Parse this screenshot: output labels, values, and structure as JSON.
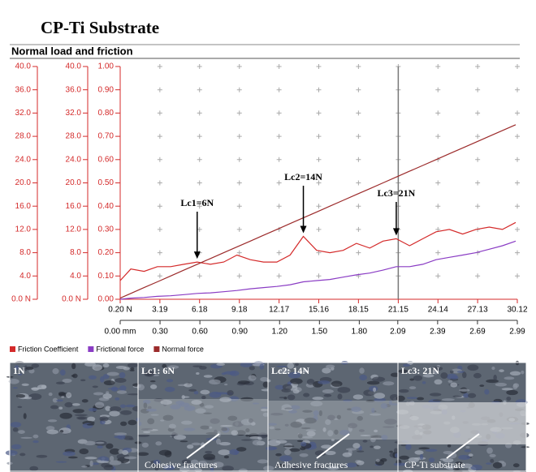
{
  "chart_data": {
    "type": "line",
    "title": "CP-Ti Substrate",
    "subtitle": "Normal load and friction",
    "x": [
      0.2,
      1,
      2,
      3,
      4,
      5,
      6,
      7,
      8,
      9,
      10,
      11,
      12,
      13,
      14,
      15,
      16,
      17,
      18,
      19,
      20,
      21,
      22,
      23,
      24,
      25,
      26,
      27,
      28,
      29,
      30
    ],
    "xlim": [
      0.2,
      30.12
    ],
    "xticks": [
      {
        "value": 0.2,
        "label": "0.20 N"
      },
      {
        "value": 3.19,
        "label": "3.19"
      },
      {
        "value": 6.18,
        "label": "6.18"
      },
      {
        "value": 9.18,
        "label": "9.18"
      },
      {
        "value": 12.17,
        "label": "12.17"
      },
      {
        "value": 15.16,
        "label": "15.16"
      },
      {
        "value": 18.15,
        "label": "18.15"
      },
      {
        "value": 21.15,
        "label": "21.15"
      },
      {
        "value": 24.14,
        "label": "24.14"
      },
      {
        "value": 27.13,
        "label": "27.13"
      },
      {
        "value": 30.12,
        "label": "30.12"
      }
    ],
    "x2lim": [
      0,
      2.99
    ],
    "x2ticks": [
      {
        "value": 0,
        "label": "0.00 mm"
      },
      {
        "value": 0.3,
        "label": "0.30"
      },
      {
        "value": 0.6,
        "label": "0.60"
      },
      {
        "value": 0.9,
        "label": "0.90"
      },
      {
        "value": 1.2,
        "label": "1.20"
      },
      {
        "value": 1.5,
        "label": "1.50"
      },
      {
        "value": 1.8,
        "label": "1.80"
      },
      {
        "value": 2.09,
        "label": "2.09"
      },
      {
        "value": 2.39,
        "label": "2.39"
      },
      {
        "value": 2.69,
        "label": "2.69"
      },
      {
        "value": 2.99,
        "label": "2.99"
      }
    ],
    "ylim": [
      0,
      40
    ],
    "yticks": [
      {
        "value": 0,
        "label": "0.0 N"
      },
      {
        "value": 4,
        "label": "4.0"
      },
      {
        "value": 8,
        "label": "8.0"
      },
      {
        "value": 12,
        "label": "12.0"
      },
      {
        "value": 16,
        "label": "16.0"
      },
      {
        "value": 20,
        "label": "20.0"
      },
      {
        "value": 24,
        "label": "24.0"
      },
      {
        "value": 28,
        "label": "28.0"
      },
      {
        "value": 32,
        "label": "32.0"
      },
      {
        "value": 36,
        "label": "36.0"
      },
      {
        "value": 40,
        "label": "40.0"
      }
    ],
    "y2lim": [
      0,
      40
    ],
    "y2ticks": [
      {
        "value": 0,
        "label": "0.0 N"
      },
      {
        "value": 4,
        "label": "4.0"
      },
      {
        "value": 8,
        "label": "8.0"
      },
      {
        "value": 12,
        "label": "12.0"
      },
      {
        "value": 16,
        "label": "16.0"
      },
      {
        "value": 20,
        "label": "20.0"
      },
      {
        "value": 24,
        "label": "24.0"
      },
      {
        "value": 28,
        "label": "28.0"
      },
      {
        "value": 32,
        "label": "32.0"
      },
      {
        "value": 36,
        "label": "36.0"
      },
      {
        "value": 40,
        "label": "40.0"
      }
    ],
    "y3lim": [
      0,
      1
    ],
    "y3ticks": [
      {
        "value": 0,
        "label": "0.00"
      },
      {
        "value": 0.1,
        "label": "0.10"
      },
      {
        "value": 0.2,
        "label": "0.20"
      },
      {
        "value": 0.3,
        "label": "0.30"
      },
      {
        "value": 0.4,
        "label": "0.40"
      },
      {
        "value": 0.5,
        "label": "0.50"
      },
      {
        "value": 0.6,
        "label": "0.60"
      },
      {
        "value": 0.7,
        "label": "0.70"
      },
      {
        "value": 0.8,
        "label": "0.80"
      },
      {
        "value": 0.9,
        "label": "0.90"
      },
      {
        "value": 1,
        "label": "1.00"
      }
    ],
    "grid": true,
    "series": [
      {
        "name": "Friction Coefficient",
        "color": "#d42a2a",
        "axis": "y3",
        "values": [
          0.08,
          0.13,
          0.12,
          0.14,
          0.14,
          0.15,
          0.16,
          0.15,
          0.16,
          0.19,
          0.17,
          0.16,
          0.16,
          0.19,
          0.27,
          0.21,
          0.2,
          0.21,
          0.24,
          0.22,
          0.25,
          0.26,
          0.23,
          0.26,
          0.29,
          0.3,
          0.28,
          0.3,
          0.31,
          0.3,
          0.33
        ]
      },
      {
        "name": "Frictional force",
        "color": "#8a3cc4",
        "axis": "y2",
        "values": [
          0,
          0.2,
          0.3,
          0.5,
          0.6,
          0.8,
          1.0,
          1.1,
          1.3,
          1.5,
          1.8,
          2.0,
          2.2,
          2.5,
          3.0,
          3.2,
          3.4,
          3.8,
          4.2,
          4.5,
          5.0,
          5.6,
          5.6,
          6.0,
          6.8,
          7.2,
          7.6,
          8.0,
          8.6,
          9.2,
          10.0
        ]
      },
      {
        "name": "Normal force",
        "color": "#9c2b2b",
        "axis": "y",
        "values": [
          0.2,
          1,
          2,
          3,
          4,
          5,
          6,
          7,
          8,
          9,
          10,
          11,
          12,
          13,
          14,
          15,
          16,
          17,
          18,
          19,
          20,
          21,
          22,
          23,
          24,
          25,
          26,
          27,
          28,
          29,
          30
        ]
      }
    ],
    "vline": 21.15,
    "annotations": [
      {
        "text": "Lc1=6N",
        "x": 6
      },
      {
        "text": "Lc2=14N",
        "x": 14
      },
      {
        "text": "Lc3=21N",
        "x": 21
      }
    ]
  },
  "micrographs": [
    {
      "label": "1N"
    },
    {
      "label": "Lc1: 6N",
      "caption": "Cohesive fractures"
    },
    {
      "label": "Lc2: 14N",
      "caption": "Adhesive fractures"
    },
    {
      "label": "Lc3: 21N",
      "caption": "CP-Ti substrate"
    }
  ]
}
